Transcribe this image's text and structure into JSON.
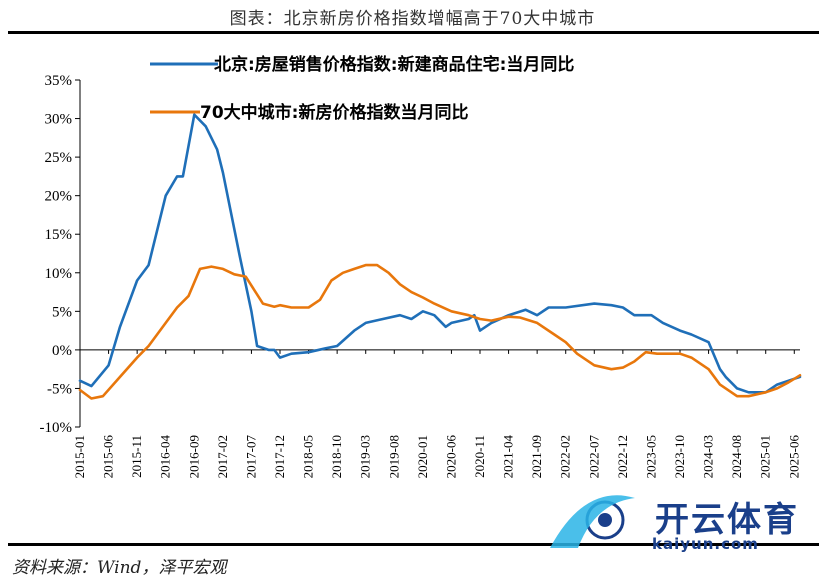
{
  "header": {
    "title": "图表：北京新房价格指数增幅高于70大中城市"
  },
  "footer": {
    "source": "资料来源：Wind，泽平宏观"
  },
  "watermark": {
    "text": "开云体育",
    "sub": "kaiyun.com"
  },
  "colors": {
    "beijing": "#1f6fb8",
    "cities70": "#e8770c",
    "axis": "#000000",
    "watermark_blue": "#1a3f8a",
    "watermark_cyan": "#2ab4e6"
  },
  "chart_data": {
    "type": "line",
    "note": "approximate values read from the chart; dates are monthly",
    "title": "",
    "xlabel": "",
    "ylabel": "",
    "ylim": [
      -10,
      35
    ],
    "yticks": [
      -10,
      -5,
      0,
      5,
      10,
      15,
      20,
      25,
      30,
      35
    ],
    "ytick_labels": [
      "-10%",
      "-5%",
      "0%",
      "5%",
      "10%",
      "15%",
      "20%",
      "25%",
      "30%",
      "35%"
    ],
    "xticks": [
      "2015-01",
      "2015-06",
      "2015-11",
      "2016-04",
      "2016-09",
      "2017-02",
      "2017-07",
      "2017-12",
      "2018-05",
      "2018-10",
      "2019-03",
      "2019-08",
      "2020-01",
      "2020-06",
      "2020-11",
      "2021-04",
      "2021-09",
      "2022-02",
      "2022-07",
      "2022-12",
      "2023-05",
      "2023-10",
      "2024-03",
      "2024-08",
      "2025-01",
      "2025-06"
    ],
    "x_start": "2015-01",
    "x_end": "2025-07",
    "grid": false,
    "legend_position": "top",
    "series": [
      {
        "name": "北京:房屋销售价格指数:新建商品住宅:当月同比",
        "color": "#1f6fb8",
        "points": [
          [
            "2015-01",
            -4.0
          ],
          [
            "2015-03",
            -4.7
          ],
          [
            "2015-06",
            -2.0
          ],
          [
            "2015-08",
            3.0
          ],
          [
            "2015-11",
            9.0
          ],
          [
            "2016-01",
            11.0
          ],
          [
            "2016-04",
            20.0
          ],
          [
            "2016-06",
            22.5
          ],
          [
            "2016-07",
            22.5
          ],
          [
            "2016-09",
            30.5
          ],
          [
            "2016-11",
            29.0
          ],
          [
            "2017-01",
            26.0
          ],
          [
            "2017-02",
            23.0
          ],
          [
            "2017-05",
            12.0
          ],
          [
            "2017-07",
            5.0
          ],
          [
            "2017-08",
            0.5
          ],
          [
            "2017-10",
            0.0
          ],
          [
            "2017-11",
            0.0
          ],
          [
            "2017-12",
            -1.0
          ],
          [
            "2018-02",
            -0.5
          ],
          [
            "2018-05",
            -0.3
          ],
          [
            "2018-08",
            0.2
          ],
          [
            "2018-10",
            0.5
          ],
          [
            "2019-01",
            2.5
          ],
          [
            "2019-03",
            3.5
          ],
          [
            "2019-06",
            4.0
          ],
          [
            "2019-09",
            4.5
          ],
          [
            "2019-11",
            4.0
          ],
          [
            "2020-01",
            5.0
          ],
          [
            "2020-03",
            4.5
          ],
          [
            "2020-05",
            3.0
          ],
          [
            "2020-06",
            3.5
          ],
          [
            "2020-09",
            4.0
          ],
          [
            "2020-10",
            4.5
          ],
          [
            "2020-11",
            2.5
          ],
          [
            "2021-01",
            3.5
          ],
          [
            "2021-04",
            4.5
          ],
          [
            "2021-07",
            5.2
          ],
          [
            "2021-09",
            4.5
          ],
          [
            "2021-11",
            5.5
          ],
          [
            "2022-02",
            5.5
          ],
          [
            "2022-07",
            6.0
          ],
          [
            "2022-10",
            5.8
          ],
          [
            "2022-12",
            5.5
          ],
          [
            "2023-02",
            4.5
          ],
          [
            "2023-05",
            4.5
          ],
          [
            "2023-07",
            3.5
          ],
          [
            "2023-10",
            2.5
          ],
          [
            "2023-12",
            2.0
          ],
          [
            "2024-03",
            1.0
          ],
          [
            "2024-05",
            -2.5
          ],
          [
            "2024-06",
            -3.5
          ],
          [
            "2024-08",
            -5.0
          ],
          [
            "2024-10",
            -5.5
          ],
          [
            "2025-01",
            -5.5
          ],
          [
            "2025-03",
            -4.5
          ],
          [
            "2025-05",
            -4.0
          ],
          [
            "2025-07",
            -3.5
          ]
        ]
      },
      {
        "name": "70大中城市:新房价格指数当月同比",
        "color": "#e8770c",
        "points": [
          [
            "2015-01",
            -5.2
          ],
          [
            "2015-03",
            -6.3
          ],
          [
            "2015-05",
            -6.0
          ],
          [
            "2015-08",
            -3.5
          ],
          [
            "2015-11",
            -1.0
          ],
          [
            "2016-01",
            0.5
          ],
          [
            "2016-04",
            3.5
          ],
          [
            "2016-06",
            5.5
          ],
          [
            "2016-08",
            7.0
          ],
          [
            "2016-10",
            10.5
          ],
          [
            "2016-12",
            10.8
          ],
          [
            "2017-02",
            10.5
          ],
          [
            "2017-04",
            9.8
          ],
          [
            "2017-06",
            9.5
          ],
          [
            "2017-09",
            6.0
          ],
          [
            "2017-11",
            5.6
          ],
          [
            "2017-12",
            5.8
          ],
          [
            "2018-02",
            5.5
          ],
          [
            "2018-05",
            5.5
          ],
          [
            "2018-07",
            6.5
          ],
          [
            "2018-09",
            9.0
          ],
          [
            "2018-11",
            10.0
          ],
          [
            "2019-01",
            10.5
          ],
          [
            "2019-03",
            11.0
          ],
          [
            "2019-05",
            11.0
          ],
          [
            "2019-07",
            10.0
          ],
          [
            "2019-09",
            8.5
          ],
          [
            "2019-11",
            7.5
          ],
          [
            "2020-01",
            6.8
          ],
          [
            "2020-03",
            6.0
          ],
          [
            "2020-06",
            5.0
          ],
          [
            "2020-09",
            4.5
          ],
          [
            "2020-11",
            4.0
          ],
          [
            "2021-01",
            3.8
          ],
          [
            "2021-04",
            4.3
          ],
          [
            "2021-06",
            4.2
          ],
          [
            "2021-09",
            3.5
          ],
          [
            "2021-12",
            2.0
          ],
          [
            "2022-02",
            1.0
          ],
          [
            "2022-04",
            -0.5
          ],
          [
            "2022-07",
            -2.0
          ],
          [
            "2022-10",
            -2.5
          ],
          [
            "2022-12",
            -2.3
          ],
          [
            "2023-02",
            -1.5
          ],
          [
            "2023-04",
            -0.3
          ],
          [
            "2023-06",
            -0.5
          ],
          [
            "2023-10",
            -0.5
          ],
          [
            "2023-12",
            -1.0
          ],
          [
            "2024-03",
            -2.5
          ],
          [
            "2024-05",
            -4.5
          ],
          [
            "2024-08",
            -6.0
          ],
          [
            "2024-10",
            -6.0
          ],
          [
            "2025-01",
            -5.5
          ],
          [
            "2025-03",
            -5.0
          ],
          [
            "2025-05",
            -4.2
          ],
          [
            "2025-07",
            -3.3
          ]
        ]
      }
    ]
  }
}
